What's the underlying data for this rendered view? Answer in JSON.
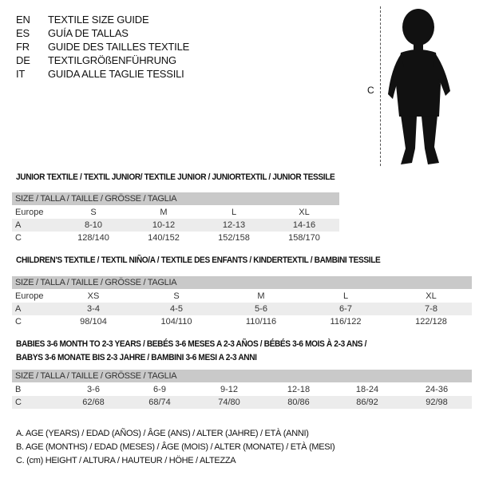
{
  "languages": [
    {
      "code": "EN",
      "title": "TEXTILE SIZE GUIDE"
    },
    {
      "code": "ES",
      "title": "GUÍA DE TALLAS"
    },
    {
      "code": "FR",
      "title": "GUIDE DES TAILLES TEXTILE"
    },
    {
      "code": "DE",
      "title": "TEXTILGRÖßENFÜHRUNG"
    },
    {
      "code": "IT",
      "title": "GUIDA ALLE TAGLIE TESSILI"
    }
  ],
  "figure": {
    "measure_label": "C",
    "image": "child-silhouette"
  },
  "size_header": "SIZE / TALLA / TAILLE / GRÖSSE / TAGLIA",
  "junior": {
    "title": "JUNIOR TEXTILE / TEXTIL JUNIOR/ TEXTILE JUNIOR / JUNIORTEXTIL / JUNIOR TESSILE",
    "rows": [
      {
        "label": "Europe",
        "values": [
          "S",
          "M",
          "L",
          "XL"
        ]
      },
      {
        "label": "A",
        "values": [
          "8-10",
          "10-12",
          "12-13",
          "14-16"
        ]
      },
      {
        "label": "C",
        "values": [
          "128/140",
          "140/152",
          "152/158",
          "158/170"
        ]
      }
    ]
  },
  "children": {
    "title": "CHILDREN'S TEXTILE / TEXTIL NIÑO/A / TEXTILE DES ENFANTS / KINDERTEXTIL / BAMBINI TESSILE",
    "rows": [
      {
        "label": "Europe",
        "values": [
          "XS",
          "S",
          "M",
          "L",
          "XL"
        ]
      },
      {
        "label": "A",
        "values": [
          "3-4",
          "4-5",
          "5-6",
          "6-7",
          "7-8"
        ]
      },
      {
        "label": "C",
        "values": [
          "98/104",
          "104/110",
          "110/116",
          "116/122",
          "122/128"
        ]
      }
    ]
  },
  "babies": {
    "title_line1": "BABIES 3-6 MONTH TO 2-3 YEARS / BEBÉS 3-6 MESES A 2-3 AÑOS / BÉBÉS 3-6 MOIS À 2-3 ANS /",
    "title_line2": "BABYS 3-6 MONATE BIS 2-3 JAHRE / BAMBINI 3-6 MESI A 2-3 ANNI",
    "rows": [
      {
        "label": "B",
        "values": [
          "3-6",
          "6-9",
          "9-12",
          "12-18",
          "18-24",
          "24-36"
        ]
      },
      {
        "label": "C",
        "values": [
          "62/68",
          "68/74",
          "74/80",
          "80/86",
          "86/92",
          "92/98"
        ]
      }
    ]
  },
  "legend": [
    "A. AGE (YEARS) / EDAD (AÑOS) / ÂGE (ANS) / ALTER (JAHRE) / ETÀ (ANNI)",
    "B. AGE (MONTHS) / EDAD (MESES) / ÂGE (MOIS) / ALTER (MONATE) / ETÀ (MESI)",
    "C. (cm) HEIGHT / ALTURA / HAUTEUR / HÖHE / ALTEZZA"
  ]
}
